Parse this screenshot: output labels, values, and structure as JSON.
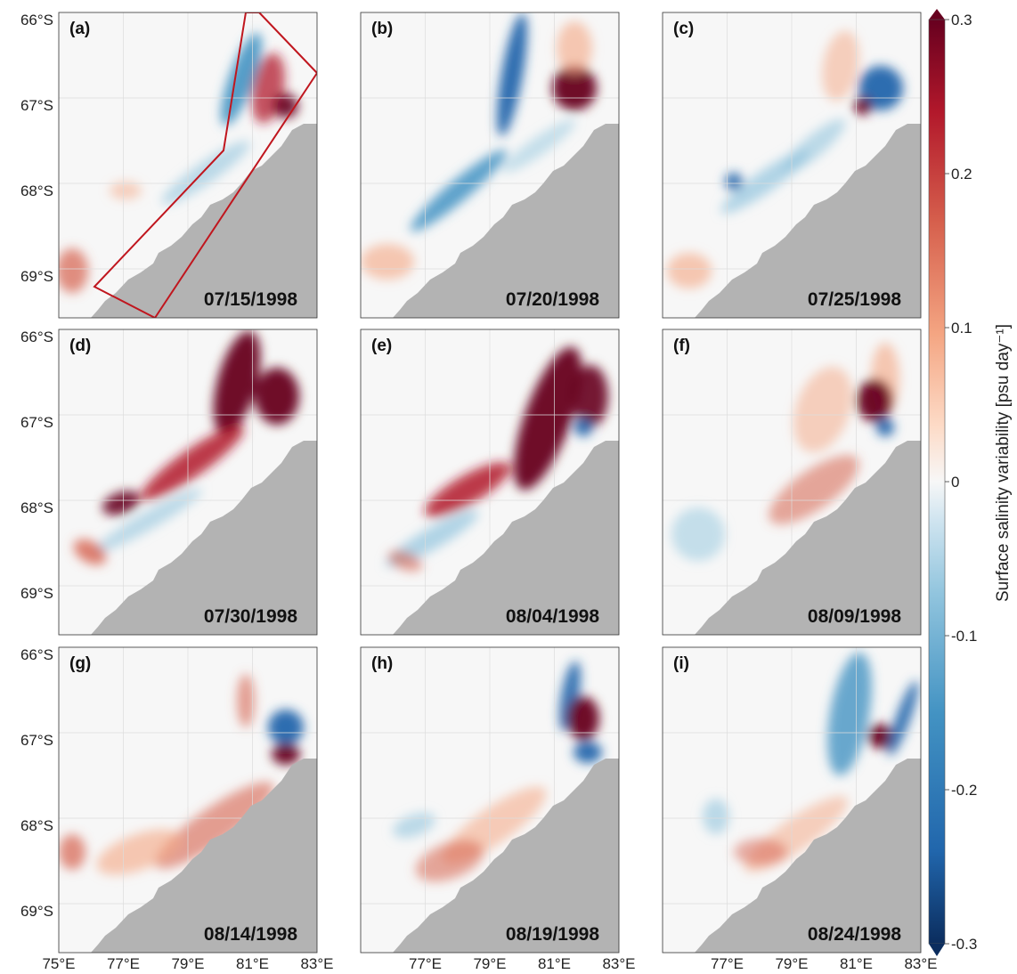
{
  "colors": {
    "land": "#b3b3b3",
    "grid": "#dcdcdc",
    "box": "#c0161e",
    "cmap": [
      "#0b2d5e",
      "#2166ac",
      "#4393c3",
      "#92c5de",
      "#d1e5f0",
      "#f7f7f7",
      "#fddbc7",
      "#f4a582",
      "#d6604d",
      "#b2182b",
      "#67001f"
    ]
  },
  "lat_labels": [
    "66°S",
    "67°S",
    "68°S",
    "69°S"
  ],
  "lon_labels": [
    "75°E",
    "77°E",
    "79°E",
    "81°E",
    "83°E"
  ],
  "colorbar": {
    "label": "Surface salinity variability [psu day⁻¹]",
    "ticks": [
      "0.3",
      "0.2",
      "0.1",
      "0",
      "-0.1",
      "-0.2",
      "-0.3"
    ],
    "range": [
      -0.3,
      0.3
    ]
  },
  "panels": [
    {
      "tag": "(a)",
      "date": "07/15/1998"
    },
    {
      "tag": "(b)",
      "date": "07/20/1998"
    },
    {
      "tag": "(c)",
      "date": "07/25/1998"
    },
    {
      "tag": "(d)",
      "date": "07/30/1998"
    },
    {
      "tag": "(e)",
      "date": "08/04/1998"
    },
    {
      "tag": "(f)",
      "date": "08/09/1998"
    },
    {
      "tag": "(g)",
      "date": "08/14/1998"
    },
    {
      "tag": "(h)",
      "date": "08/19/1998"
    },
    {
      "tag": "(i)",
      "date": "08/24/1998"
    }
  ]
}
